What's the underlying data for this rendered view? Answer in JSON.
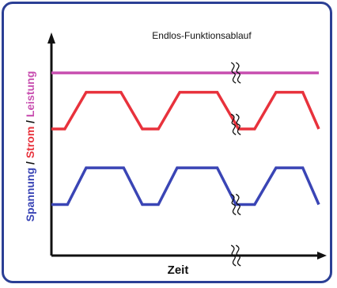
{
  "chart_data": {
    "type": "line",
    "title": "Endlos-Funktionsablauf",
    "xlabel": "Zeit",
    "ylabel_parts": [
      {
        "text": "Spannung",
        "color": "#3a45b5"
      },
      {
        "text": " / ",
        "color": "#111111"
      },
      {
        "text": "Strom",
        "color": "#e8323c"
      },
      {
        "text": " / ",
        "color": "#111111"
      },
      {
        "text": "Leistung",
        "color": "#c84fb0"
      }
    ],
    "xlim": [
      0,
      10
    ],
    "ylim": [
      0,
      10
    ],
    "grid": false,
    "legend": "none",
    "series": [
      {
        "color": "#c84fb0",
        "x": [
          0,
          10
        ],
        "y": [
          8.95,
          8.95
        ]
      },
      {
        "color": "#e8323c",
        "x": [
          0,
          0.5,
          1.3,
          2.6,
          3.4,
          4.0,
          4.8,
          6.2,
          7.0,
          7.6,
          8.4,
          9.4,
          10.0
        ],
        "y": [
          6.2,
          6.2,
          8.0,
          8.0,
          6.2,
          6.2,
          8.0,
          8.0,
          6.2,
          6.2,
          8.0,
          8.0,
          6.2
        ]
      },
      {
        "color": "#3a45b5",
        "x": [
          0,
          0.6,
          1.3,
          2.7,
          3.4,
          4.0,
          4.7,
          6.2,
          6.9,
          7.6,
          8.4,
          9.4,
          10.0
        ],
        "y": [
          2.5,
          2.5,
          4.3,
          4.3,
          2.5,
          2.5,
          4.3,
          4.3,
          2.5,
          2.5,
          4.3,
          4.3,
          2.5
        ]
      }
    ],
    "break_marks_x": 6.9,
    "axis_color": "#111111"
  }
}
